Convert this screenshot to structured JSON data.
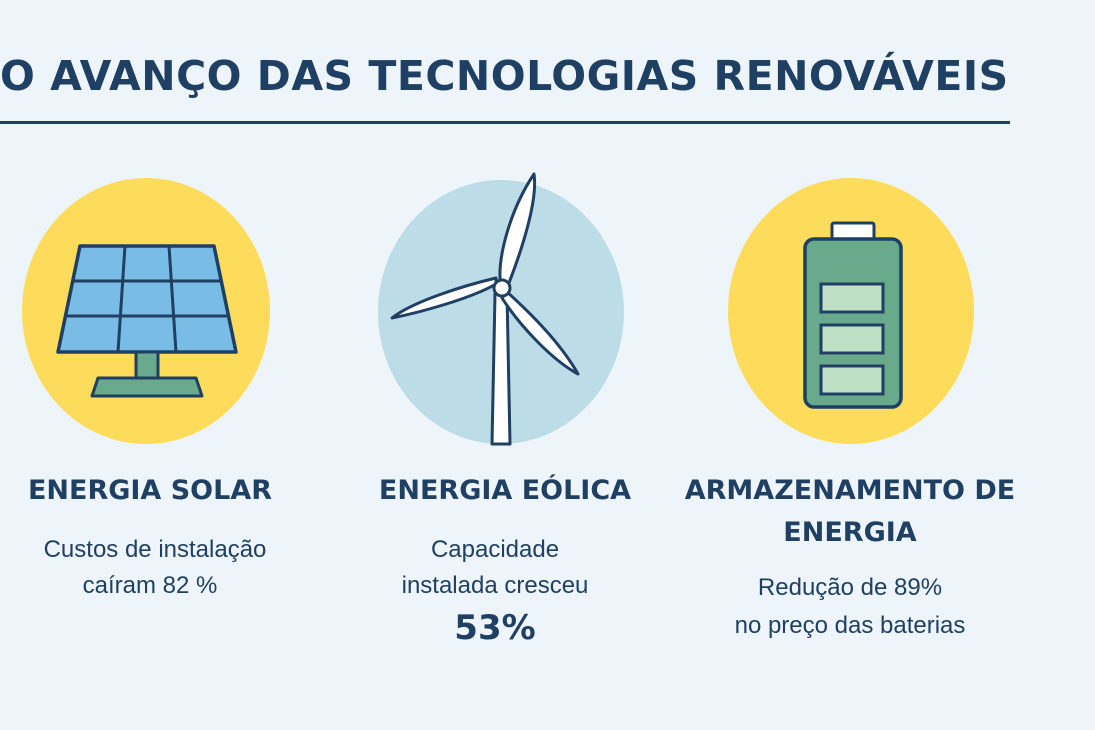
{
  "header": {
    "title": "O AVANÇO DAS TECNOLOGIAS RENOVÁVEIS"
  },
  "cards": [
    {
      "icon": "solar-panel-icon",
      "title": "ENERGIA SOLAR",
      "text_line1": "Custos de instalação",
      "text_line2": "caíram 82 %",
      "circle_color": "#fddc5c"
    },
    {
      "icon": "wind-turbine-icon",
      "title": "ENERGIA EÓLICA",
      "text_line1": "Capacidade",
      "text_line2": "instalada cresceu",
      "highlight": "53%",
      "circle_color": "#bcdce7"
    },
    {
      "icon": "battery-icon",
      "title_line1": "ARMAZENAMENTO DE",
      "title_line2": "ENERGIA",
      "text_line1": "Redução de 89%",
      "text_line2": "no preço das baterias",
      "circle_color": "#fddc5c"
    }
  ],
  "colors": {
    "background": "#eef5fa",
    "text": "#1f3f63",
    "solar_cell": "#79bde6",
    "battery_body": "#6aaa8c",
    "battery_cell": "#bfe0c4"
  }
}
